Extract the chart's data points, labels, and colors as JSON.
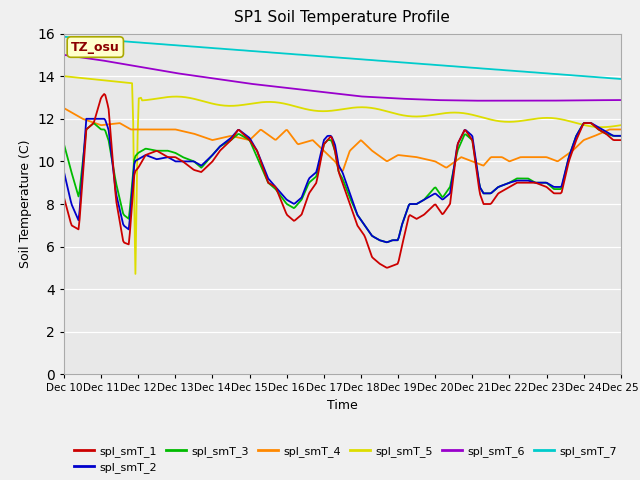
{
  "title": "SP1 Soil Temperature Profile",
  "xlabel": "Time",
  "ylabel": "Soil Temperature (C)",
  "annotation": "TZ_osu",
  "ylim": [
    0,
    16
  ],
  "yticks": [
    0,
    2,
    4,
    6,
    8,
    10,
    12,
    14,
    16
  ],
  "series_colors": {
    "spl_smT_1": "#cc0000",
    "spl_smT_2": "#0000cc",
    "spl_smT_3": "#00bb00",
    "spl_smT_4": "#ff8800",
    "spl_smT_5": "#dddd00",
    "spl_smT_6": "#9900cc",
    "spl_smT_7": "#00cccc"
  },
  "background_color": "#f0f0f0",
  "xtick_labels": [
    "Dec 10",
    "Dec 11",
    "Dec 12",
    "Dec 13",
    "Dec 14",
    "Dec 15",
    "Dec 16",
    "Dec 17",
    "Dec 18",
    "Dec 19",
    "Dec 20",
    "Dec 21",
    "Dec 22",
    "Dec 23",
    "Dec 24",
    "Dec 25"
  ]
}
